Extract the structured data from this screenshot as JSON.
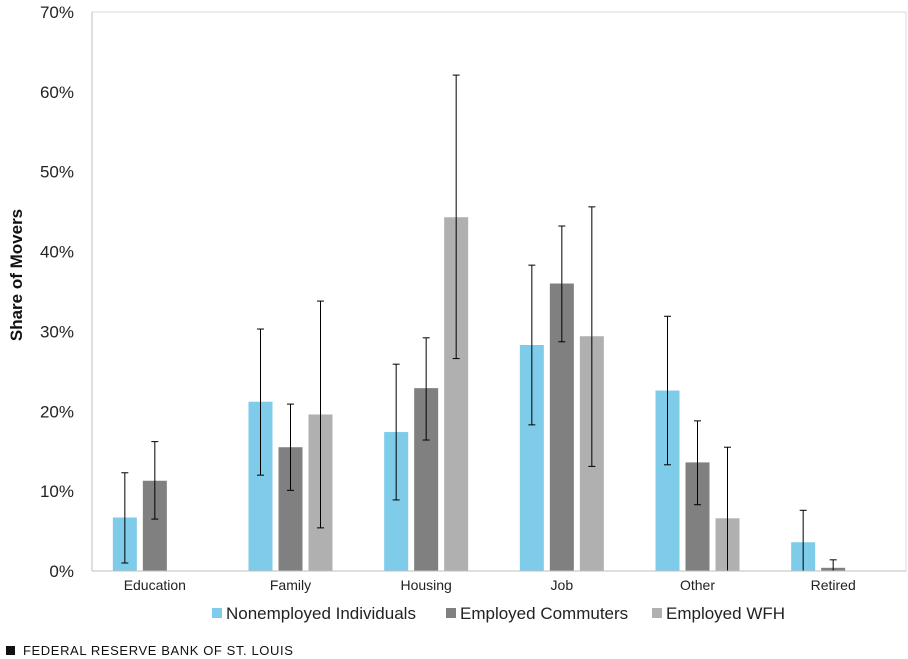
{
  "chart_data": {
    "type": "bar",
    "title": "",
    "xlabel": "",
    "ylabel": "Share of Movers",
    "ylim": [
      0,
      70
    ],
    "yticks": [
      "0%",
      "10%",
      "20%",
      "30%",
      "40%",
      "50%",
      "60%",
      "70%"
    ],
    "categories": [
      "Education",
      "Family",
      "Housing",
      "Job",
      "Other",
      "Retired"
    ],
    "series": [
      {
        "name": "Nonemployed Individuals",
        "color": "#7ecbea",
        "values": [
          6.7,
          21.2,
          17.4,
          28.3,
          22.6,
          3.6
        ],
        "err_low": [
          1.0,
          12.0,
          8.9,
          18.3,
          13.3,
          0.0
        ],
        "err_high": [
          12.3,
          30.3,
          25.9,
          38.3,
          31.9,
          7.6
        ]
      },
      {
        "name": "Employed Commuters",
        "color": "#808080",
        "values": [
          11.3,
          15.5,
          22.9,
          36.0,
          13.6,
          0.4
        ],
        "err_low": [
          6.5,
          10.1,
          16.4,
          28.7,
          8.3,
          0.0
        ],
        "err_high": [
          16.2,
          20.9,
          29.2,
          43.2,
          18.8,
          1.4
        ]
      },
      {
        "name": "Employed WFH",
        "color": "#b0b0b0",
        "values": [
          null,
          19.6,
          44.3,
          29.4,
          6.6,
          null
        ],
        "err_low": [
          null,
          5.4,
          26.6,
          13.1,
          0.0,
          null
        ],
        "err_high": [
          null,
          33.8,
          62.1,
          45.6,
          15.5,
          null
        ]
      }
    ],
    "grid": false,
    "legend": "bottom"
  },
  "footer": {
    "text": "FEDERAL RESERVE BANK OF ST. LOUIS"
  }
}
